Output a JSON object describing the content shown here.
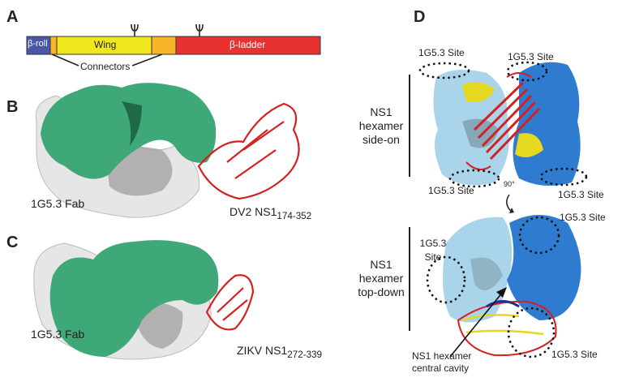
{
  "panels": {
    "a": {
      "label": "A",
      "domains": [
        {
          "name": "β-roll",
          "color": "#4a56a6"
        },
        {
          "name": "",
          "color": "#f8b42a"
        },
        {
          "name": "Wing",
          "color": "#f0e81c"
        },
        {
          "name": "",
          "color": "#f8b42a"
        },
        {
          "name": "β-ladder",
          "color": "#e83232"
        }
      ],
      "connectors_label": "Connectors"
    },
    "b": {
      "label": "B",
      "fab_label": "1G5.3 Fab",
      "ns1_label": "DV2 NS1",
      "ns1_sub": "174-352"
    },
    "c": {
      "label": "C",
      "fab_label": "1G5.3 Fab",
      "ns1_label": "ZIKV NS1",
      "ns1_sub": "272-339"
    },
    "d": {
      "label": "D",
      "side_on": [
        "NS1",
        "hexamer",
        "side-on"
      ],
      "top_down": [
        "NS1",
        "hexamer",
        "top-down"
      ],
      "site_label": "1G5.3 Site",
      "site_split": [
        "1G5.3",
        "Site"
      ],
      "rotation": "90°",
      "cavity": [
        "NS1 hexamer",
        "central cavity"
      ]
    }
  },
  "colors": {
    "fab_heavy": "#3fa878",
    "fab_light": "#e8e8e8",
    "ns1": "#d42020",
    "light_blue": "#a9d4ea",
    "dark_blue": "#2f7bd0"
  }
}
